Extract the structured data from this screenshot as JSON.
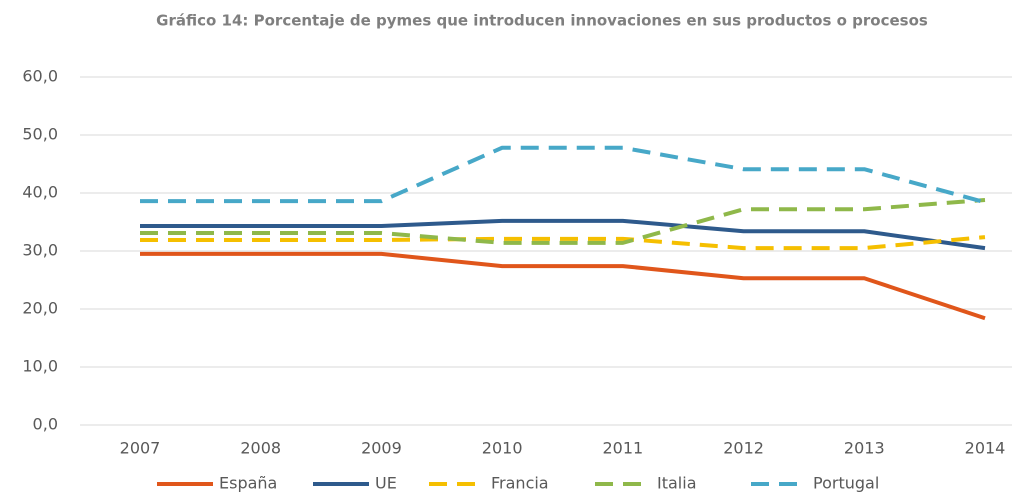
{
  "chart_data": {
    "type": "line",
    "title": "Gráfico 14: Porcentaje de pymes que introducen innovaciones en sus productos o procesos",
    "categories": [
      "2007",
      "2008",
      "2009",
      "2010",
      "2011",
      "2012",
      "2013",
      "2014"
    ],
    "series": [
      {
        "name": "España",
        "color": "#e0561b",
        "line_style": "solid",
        "values": [
          29.5,
          29.5,
          29.5,
          27.4,
          27.4,
          25.3,
          25.3,
          18.4
        ]
      },
      {
        "name": "UE",
        "color": "#2e5a8c",
        "line_style": "solid",
        "values": [
          34.3,
          34.3,
          34.3,
          35.2,
          35.2,
          33.4,
          33.4,
          30.5
        ]
      },
      {
        "name": "Francia",
        "color": "#f5bf00",
        "line_style": "dashed",
        "values": [
          31.9,
          31.9,
          31.9,
          32.1,
          32.1,
          30.5,
          30.5,
          32.4
        ]
      },
      {
        "name": "Italia",
        "color": "#8fb84a",
        "line_style": "dashed",
        "values": [
          33.1,
          33.1,
          33.1,
          31.4,
          31.4,
          37.2,
          37.2,
          38.8
        ]
      },
      {
        "name": "Portugal",
        "color": "#47a8c8",
        "line_style": "dashed",
        "values": [
          38.6,
          38.6,
          38.6,
          47.8,
          47.8,
          44.1,
          44.1,
          38.4
        ]
      }
    ],
    "ylim": [
      0,
      60
    ],
    "yticks": [
      {
        "value": 0,
        "label": "0,0"
      },
      {
        "value": 10,
        "label": "10,0"
      },
      {
        "value": 20,
        "label": "20,0"
      },
      {
        "value": 30,
        "label": "30,0"
      },
      {
        "value": 40,
        "label": "40,0"
      },
      {
        "value": 50,
        "label": "50,0"
      },
      {
        "value": 60,
        "label": "60,0"
      }
    ],
    "grid": true,
    "legend": "bottom"
  }
}
